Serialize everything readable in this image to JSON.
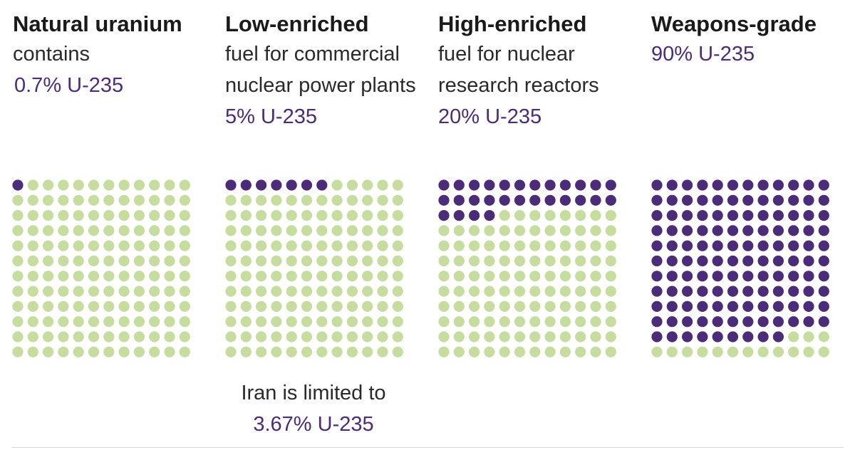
{
  "colors": {
    "enriched": "#4b2c79",
    "other": "#c7dc9f"
  },
  "columns": [
    {
      "title": "Natural uranium",
      "description": "contains",
      "percent_label": "0.7% U-235"
    },
    {
      "title": "Low-enriched",
      "description": "fuel for commercial nuclear power plants",
      "percent_label": "5% U-235"
    },
    {
      "title": "High-enriched",
      "description": "fuel for nuclear research reactors",
      "percent_label": "20% U-235"
    },
    {
      "title": "Weapons-grade",
      "description": "",
      "percent_label": "90% U-235"
    }
  ],
  "note": {
    "text": "Iran is limited to",
    "percent_label": "3.67% U-235"
  },
  "chart_data": [
    {
      "type": "waffle",
      "title": "Natural uranium",
      "rows": 12,
      "cols": 12,
      "total_dots": 144,
      "filled_dots": 1,
      "series": [
        {
          "name": "U-235",
          "value": 0.7
        }
      ]
    },
    {
      "type": "waffle",
      "title": "Low-enriched",
      "rows": 12,
      "cols": 12,
      "total_dots": 144,
      "filled_dots": 7,
      "series": [
        {
          "name": "U-235",
          "value": 5
        }
      ]
    },
    {
      "type": "waffle",
      "title": "High-enriched",
      "rows": 12,
      "cols": 12,
      "total_dots": 144,
      "filled_dots": 28,
      "series": [
        {
          "name": "U-235",
          "value": 20
        }
      ]
    },
    {
      "type": "waffle",
      "title": "Weapons-grade",
      "rows": 12,
      "cols": 12,
      "total_dots": 144,
      "filled_dots": 129,
      "series": [
        {
          "name": "U-235",
          "value": 90
        }
      ]
    }
  ]
}
